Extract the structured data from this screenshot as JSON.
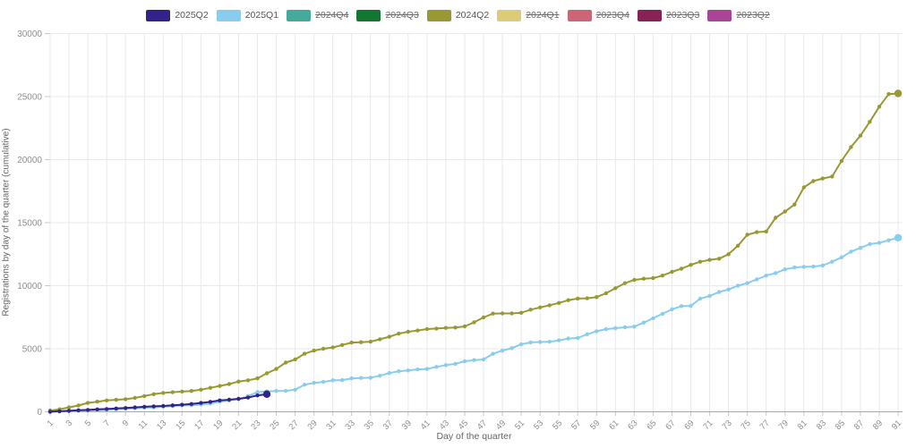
{
  "chart_data": {
    "type": "line",
    "title": "",
    "xlabel": "Day of the quarter",
    "ylabel": "Registrations by day of the quarter (cumulative)",
    "xlim": [
      1,
      91
    ],
    "ylim": [
      0,
      30000
    ],
    "grid": true,
    "legend_position": "top",
    "y_ticks": [
      0,
      5000,
      10000,
      15000,
      20000,
      25000,
      30000
    ],
    "x_ticks": [
      1,
      3,
      5,
      7,
      9,
      11,
      13,
      15,
      17,
      19,
      21,
      23,
      25,
      27,
      29,
      31,
      33,
      35,
      37,
      39,
      41,
      43,
      45,
      47,
      49,
      51,
      53,
      55,
      57,
      59,
      61,
      63,
      65,
      67,
      69,
      71,
      73,
      75,
      77,
      79,
      81,
      83,
      85,
      87,
      89,
      91
    ],
    "series": [
      {
        "name": "2025Q2",
        "color": "#332288",
        "hidden": false,
        "x_start": 1,
        "values": [
          10,
          40,
          80,
          120,
          150,
          190,
          220,
          260,
          300,
          350,
          400,
          430,
          460,
          510,
          560,
          620,
          700,
          790,
          900,
          960,
          1030,
          1130,
          1300,
          1400
        ]
      },
      {
        "name": "2025Q1",
        "color": "#88CCEE",
        "hidden": false,
        "x_start": 1,
        "values": [
          0,
          30,
          60,
          80,
          100,
          130,
          160,
          200,
          240,
          280,
          320,
          350,
          400,
          450,
          500,
          520,
          570,
          650,
          800,
          900,
          1000,
          1250,
          1550,
          1620,
          1650,
          1660,
          1750,
          2150,
          2290,
          2370,
          2500,
          2510,
          2650,
          2680,
          2700,
          2860,
          3070,
          3210,
          3280,
          3360,
          3400,
          3560,
          3700,
          3800,
          4010,
          4100,
          4150,
          4600,
          4850,
          5050,
          5350,
          5500,
          5530,
          5550,
          5670,
          5810,
          5850,
          6150,
          6390,
          6550,
          6630,
          6700,
          6750,
          7070,
          7420,
          7770,
          8130,
          8380,
          8400,
          8980,
          9190,
          9500,
          9700,
          10000,
          10200,
          10500,
          10800,
          11000,
          11300,
          11450,
          11500,
          11520,
          11600,
          11900,
          12250,
          12700,
          13000,
          13300,
          13400,
          13600,
          13800
        ]
      },
      {
        "name": "2024Q4",
        "color": "#44AA99",
        "hidden": true,
        "x_start": 1,
        "values": []
      },
      {
        "name": "2024Q3",
        "color": "#117733",
        "hidden": true,
        "x_start": 1,
        "values": []
      },
      {
        "name": "2024Q2",
        "color": "#999933",
        "hidden": false,
        "x_start": 1,
        "values": [
          100,
          200,
          350,
          500,
          700,
          800,
          900,
          950,
          1000,
          1100,
          1250,
          1400,
          1500,
          1550,
          1600,
          1650,
          1750,
          1900,
          2050,
          2200,
          2400,
          2500,
          2650,
          3050,
          3400,
          3900,
          4150,
          4600,
          4850,
          5000,
          5100,
          5300,
          5490,
          5520,
          5560,
          5750,
          5950,
          6200,
          6350,
          6450,
          6560,
          6600,
          6650,
          6680,
          6770,
          7100,
          7480,
          7790,
          7800,
          7800,
          7850,
          8100,
          8280,
          8450,
          8630,
          8850,
          8980,
          9000,
          9100,
          9400,
          9800,
          10200,
          10460,
          10550,
          10600,
          10800,
          11100,
          11350,
          11650,
          11900,
          12050,
          12140,
          12500,
          13170,
          14040,
          14250,
          14300,
          15390,
          15880,
          16440,
          17800,
          18300,
          18500,
          18660,
          19900,
          21000,
          21900,
          23000,
          24200,
          25200,
          25250
        ]
      },
      {
        "name": "2024Q1",
        "color": "#DDCC77",
        "hidden": true,
        "x_start": 1,
        "values": []
      },
      {
        "name": "2023Q4",
        "color": "#CC6677",
        "hidden": true,
        "x_start": 1,
        "values": []
      },
      {
        "name": "2023Q3",
        "color": "#882255",
        "hidden": true,
        "x_start": 1,
        "values": []
      },
      {
        "name": "2023Q2",
        "color": "#AA4499",
        "hidden": true,
        "x_start": 1,
        "values": []
      }
    ]
  }
}
